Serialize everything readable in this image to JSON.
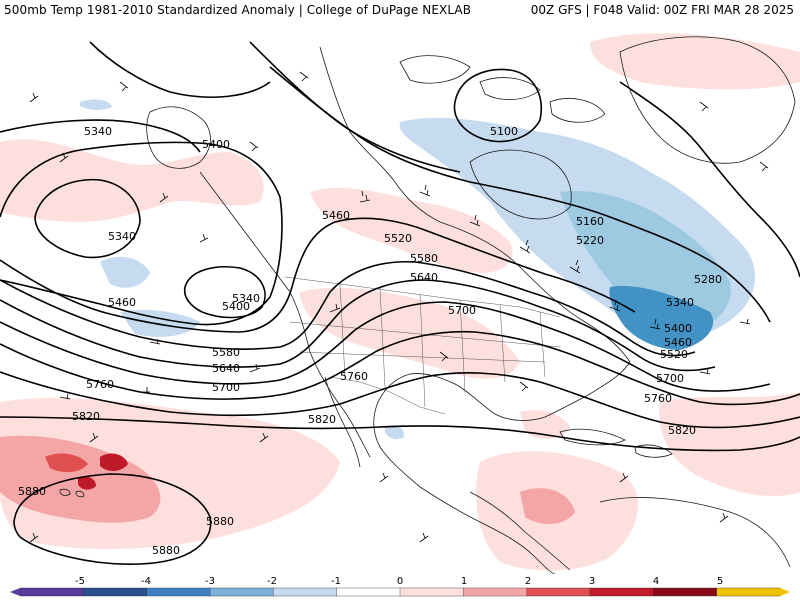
{
  "header": {
    "title_left": "500mb Temp 1981-2010 Standardized Anomaly | College of DuPage NEXLAB",
    "title_right": "00Z GFS | F048 Valid: 00Z FRI MAR 28 2025"
  },
  "colors": {
    "background": "#ffffff",
    "coast": "#1a1a1a",
    "contour": "#000000",
    "cold_light": "#c6dbef",
    "cold_mid": "#9ecae1",
    "cold_strong": "#4292c6",
    "warm_light": "#fde0dd",
    "warm_mid": "#f4a6a6",
    "warm_strong": "#e05050",
    "warm_extreme": "#c01a2a"
  },
  "contour_labels": [
    {
      "text": "5340"
    },
    {
      "text": "5400"
    },
    {
      "text": "5340"
    },
    {
      "text": "5460"
    },
    {
      "text": "5340"
    },
    {
      "text": "5400"
    },
    {
      "text": "5460"
    },
    {
      "text": "5520"
    },
    {
      "text": "5580"
    },
    {
      "text": "5640"
    },
    {
      "text": "5700"
    },
    {
      "text": "5580"
    },
    {
      "text": "5640"
    },
    {
      "text": "5700"
    },
    {
      "text": "5760"
    },
    {
      "text": "5760"
    },
    {
      "text": "5820"
    },
    {
      "text": "5820"
    },
    {
      "text": "5100"
    },
    {
      "text": "5160"
    },
    {
      "text": "5220"
    },
    {
      "text": "5280"
    },
    {
      "text": "5340"
    },
    {
      "text": "5400"
    },
    {
      "text": "5460"
    },
    {
      "text": "5520"
    },
    {
      "text": "5700"
    },
    {
      "text": "5760"
    },
    {
      "text": "5820"
    },
    {
      "text": "5880"
    },
    {
      "text": "5880"
    },
    {
      "text": "5880"
    }
  ],
  "legend": {
    "ticks": [
      "-5",
      "-4",
      "-3",
      "-2",
      "-1",
      "0",
      "1",
      "2",
      "3",
      "4",
      "5"
    ],
    "colors": [
      "#5a3a9a",
      "#2c4d8e",
      "#3b7fc4",
      "#7fb0dc",
      "#c6dbef",
      "#ffffff",
      "#fde0dd",
      "#f4a6a6",
      "#e05050",
      "#c01a2a",
      "#8b0a1a",
      "#f2c200"
    ]
  }
}
